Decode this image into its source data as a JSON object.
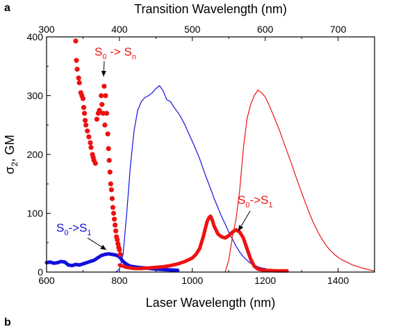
{
  "chart_data": {
    "type": "scatter",
    "panel_label": "a",
    "panel_label_2": "b",
    "xlabel": "Laser Wavelength (nm)",
    "x2label": "Transition Wavelength (nm)",
    "ylabel": "σ₂, GM",
    "xlim": [
      600,
      1500
    ],
    "x2lim": [
      300,
      750
    ],
    "ylim": [
      0,
      400
    ],
    "x_ticks": [
      600,
      800,
      1000,
      1200,
      1400
    ],
    "x2_ticks": [
      300,
      400,
      500,
      600,
      700
    ],
    "y_ticks": [
      0,
      100,
      200,
      300,
      400
    ],
    "colors": {
      "blue": "#1010dd",
      "red": "#ee1111"
    },
    "annotations": [
      {
        "id": "sn-red",
        "main": "S",
        "sub1": "0",
        "arrow": " -> S",
        "sub2": "n",
        "color": "#ee1111",
        "point_x": 765,
        "point_y": 310
      },
      {
        "id": "s1-blue",
        "main": "S",
        "sub1": "0",
        "arrow": "->S",
        "sub2": "1",
        "color": "#1010dd",
        "point_x": 760,
        "point_y": 30
      },
      {
        "id": "s1-red",
        "main": "S",
        "sub1": "0",
        "arrow": "->S",
        "sub2": "1",
        "color": "#ee1111",
        "point_x": 1120,
        "point_y": 55
      }
    ],
    "series": [
      {
        "id": "blue-2pa",
        "color": "#1010dd",
        "style": "thick-line",
        "points": [
          [
            600,
            16
          ],
          [
            610,
            17
          ],
          [
            620,
            15
          ],
          [
            630,
            16
          ],
          [
            640,
            18
          ],
          [
            650,
            17
          ],
          [
            660,
            12
          ],
          [
            670,
            11
          ],
          [
            680,
            13
          ],
          [
            690,
            12
          ],
          [
            700,
            14
          ],
          [
            710,
            16
          ],
          [
            720,
            18
          ],
          [
            730,
            20
          ],
          [
            740,
            24
          ],
          [
            750,
            28
          ],
          [
            760,
            30
          ],
          [
            770,
            31
          ],
          [
            780,
            30
          ],
          [
            790,
            29
          ],
          [
            800,
            26
          ],
          [
            810,
            18
          ],
          [
            820,
            13
          ],
          [
            830,
            10
          ],
          [
            840,
            9
          ],
          [
            850,
            8
          ],
          [
            870,
            7
          ],
          [
            900,
            5
          ],
          [
            930,
            4
          ],
          [
            960,
            3
          ]
        ]
      },
      {
        "id": "blue-1pa",
        "color": "#1010dd",
        "style": "line",
        "points": [
          [
            790,
            0
          ],
          [
            800,
            5
          ],
          [
            810,
            30
          ],
          [
            820,
            100
          ],
          [
            830,
            180
          ],
          [
            840,
            240
          ],
          [
            850,
            275
          ],
          [
            860,
            290
          ],
          [
            870,
            297
          ],
          [
            880,
            300
          ],
          [
            890,
            305
          ],
          [
            900,
            312
          ],
          [
            910,
            317
          ],
          [
            920,
            308
          ],
          [
            930,
            293
          ],
          [
            940,
            290
          ],
          [
            950,
            280
          ],
          [
            960,
            272
          ],
          [
            970,
            262
          ],
          [
            980,
            250
          ],
          [
            990,
            236
          ],
          [
            1000,
            222
          ],
          [
            1010,
            208
          ],
          [
            1020,
            193
          ],
          [
            1030,
            175
          ],
          [
            1040,
            158
          ],
          [
            1050,
            142
          ],
          [
            1060,
            125
          ],
          [
            1070,
            110
          ],
          [
            1080,
            95
          ],
          [
            1090,
            82
          ],
          [
            1100,
            68
          ],
          [
            1110,
            56
          ],
          [
            1120,
            44
          ],
          [
            1130,
            34
          ],
          [
            1140,
            26
          ],
          [
            1150,
            20
          ],
          [
            1160,
            15
          ],
          [
            1170,
            12
          ],
          [
            1180,
            9
          ],
          [
            1190,
            7
          ],
          [
            1200,
            6
          ]
        ]
      },
      {
        "id": "red-2pa",
        "color": "#ee1111",
        "style": "thick-line",
        "points": [
          [
            800,
            12
          ],
          [
            820,
            8
          ],
          [
            840,
            6
          ],
          [
            860,
            6
          ],
          [
            880,
            7
          ],
          [
            900,
            8
          ],
          [
            920,
            9
          ],
          [
            940,
            11
          ],
          [
            960,
            14
          ],
          [
            980,
            18
          ],
          [
            1000,
            24
          ],
          [
            1010,
            30
          ],
          [
            1020,
            40
          ],
          [
            1030,
            60
          ],
          [
            1040,
            85
          ],
          [
            1045,
            92
          ],
          [
            1050,
            95
          ],
          [
            1055,
            88
          ],
          [
            1060,
            78
          ],
          [
            1070,
            65
          ],
          [
            1080,
            60
          ],
          [
            1090,
            58
          ],
          [
            1100,
            62
          ],
          [
            1110,
            68
          ],
          [
            1120,
            72
          ],
          [
            1130,
            68
          ],
          [
            1140,
            58
          ],
          [
            1150,
            40
          ],
          [
            1160,
            22
          ],
          [
            1170,
            10
          ],
          [
            1180,
            5
          ],
          [
            1200,
            3
          ],
          [
            1230,
            2
          ],
          [
            1260,
            2
          ]
        ]
      },
      {
        "id": "red-1pa",
        "color": "#ee1111",
        "style": "line",
        "points": [
          [
            1090,
            0
          ],
          [
            1100,
            20
          ],
          [
            1110,
            60
          ],
          [
            1120,
            90
          ],
          [
            1130,
            140
          ],
          [
            1140,
            210
          ],
          [
            1150,
            260
          ],
          [
            1160,
            285
          ],
          [
            1170,
            300
          ],
          [
            1180,
            310
          ],
          [
            1190,
            305
          ],
          [
            1200,
            298
          ],
          [
            1210,
            285
          ],
          [
            1220,
            270
          ],
          [
            1230,
            255
          ],
          [
            1240,
            240
          ],
          [
            1250,
            222
          ],
          [
            1260,
            205
          ],
          [
            1270,
            188
          ],
          [
            1280,
            170
          ],
          [
            1290,
            152
          ],
          [
            1300,
            135
          ],
          [
            1310,
            118
          ],
          [
            1320,
            102
          ],
          [
            1330,
            87
          ],
          [
            1340,
            74
          ],
          [
            1350,
            62
          ],
          [
            1360,
            52
          ],
          [
            1370,
            43
          ],
          [
            1380,
            36
          ],
          [
            1390,
            30
          ],
          [
            1400,
            25
          ],
          [
            1410,
            21
          ],
          [
            1420,
            18
          ],
          [
            1430,
            15
          ],
          [
            1440,
            12
          ],
          [
            1450,
            10
          ],
          [
            1460,
            8
          ],
          [
            1470,
            6
          ],
          [
            1480,
            5
          ],
          [
            1490,
            3
          ],
          [
            1500,
            2
          ]
        ]
      },
      {
        "id": "red-sn",
        "color": "#ee1111",
        "style": "dots",
        "points": [
          [
            680,
            393
          ],
          [
            682,
            360
          ],
          [
            684,
            345
          ],
          [
            688,
            330
          ],
          [
            690,
            322
          ],
          [
            694,
            305
          ],
          [
            697,
            300
          ],
          [
            700,
            295
          ],
          [
            702,
            280
          ],
          [
            704,
            270
          ],
          [
            706,
            258
          ],
          [
            708,
            250
          ],
          [
            712,
            240
          ],
          [
            716,
            230
          ],
          [
            720,
            220
          ],
          [
            722,
            212
          ],
          [
            726,
            200
          ],
          [
            728,
            195
          ],
          [
            730,
            190
          ],
          [
            734,
            185
          ],
          [
            738,
            260
          ],
          [
            742,
            270
          ],
          [
            745,
            275
          ],
          [
            750,
            300
          ],
          [
            752,
            285
          ],
          [
            755,
            270
          ],
          [
            758,
            316
          ],
          [
            760,
            250
          ],
          [
            762,
            300
          ],
          [
            765,
            270
          ],
          [
            768,
            235
          ],
          [
            770,
            210
          ],
          [
            772,
            190
          ],
          [
            774,
            170
          ],
          [
            776,
            150
          ],
          [
            778,
            140
          ],
          [
            780,
            125
          ],
          [
            782,
            110
          ],
          [
            784,
            100
          ],
          [
            786,
            90
          ],
          [
            788,
            80
          ],
          [
            790,
            70
          ],
          [
            792,
            60
          ],
          [
            794,
            55
          ],
          [
            796,
            48
          ],
          [
            798,
            42
          ],
          [
            800,
            38
          ],
          [
            802,
            30
          ]
        ]
      }
    ]
  }
}
